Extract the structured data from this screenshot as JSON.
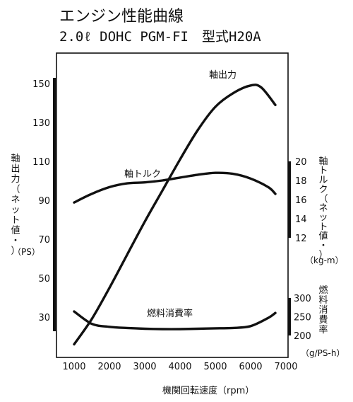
{
  "chart_data": {
    "type": "line",
    "title": "エンジン性能曲線",
    "subtitle": "2.0ℓ DOHC PGM-FI　型式H20A",
    "xlabel": "機関回転速度（rpm）",
    "x_ticks": [
      1000,
      2000,
      3000,
      4000,
      5000,
      6000,
      7000
    ],
    "xlim": [
      800,
      7000
    ],
    "axes": {
      "left": {
        "label": "軸出力（ネット値・）",
        "unit": "（PS）",
        "range": [
          10,
          170
        ],
        "ticks": [
          30,
          50,
          70,
          90,
          110,
          130,
          150
        ]
      },
      "right_torque": {
        "label": "軸トルク（ネット値・）",
        "unit": "（kg-m）",
        "ticks": [
          12,
          14,
          16,
          18,
          20
        ],
        "scale": {
          "v0": 12,
          "y0": 336,
          "v1": 20,
          "y1": 228
        }
      },
      "right_fuel": {
        "label": "燃料消費率",
        "unit": "（g/PS-h）",
        "ticks": [
          200,
          250,
          300
        ],
        "scale": {
          "v0": 200,
          "y0": 474,
          "v1": 300,
          "y1": 421
        }
      }
    },
    "grid": false,
    "series": [
      {
        "name": "軸出力",
        "axis": "left",
        "x": [
          1000,
          1500,
          2000,
          2500,
          3000,
          3500,
          4000,
          4500,
          5000,
          5500,
          6000,
          6300,
          6700
        ],
        "values": [
          16,
          29,
          45,
          62,
          79,
          95,
          111,
          126,
          138,
          145,
          149,
          148,
          139
        ]
      },
      {
        "name": "軸トルク",
        "axis": "right_torque",
        "x": [
          1000,
          1500,
          2000,
          2500,
          3000,
          3500,
          4000,
          4500,
          5000,
          5500,
          6000,
          6500,
          6700
        ],
        "values": [
          15.7,
          16.6,
          17.3,
          17.7,
          17.8,
          18.0,
          18.3,
          18.6,
          18.8,
          18.7,
          18.2,
          17.3,
          16.6
        ]
      },
      {
        "name": "燃料消費率",
        "axis": "right_fuel",
        "x": [
          1000,
          1500,
          2000,
          2500,
          3000,
          3500,
          4000,
          4500,
          5000,
          5500,
          6000,
          6500,
          6700
        ],
        "values": [
          264,
          231,
          223,
          220,
          218,
          217,
          217,
          218,
          219,
          220,
          225,
          247,
          260
        ]
      }
    ]
  }
}
